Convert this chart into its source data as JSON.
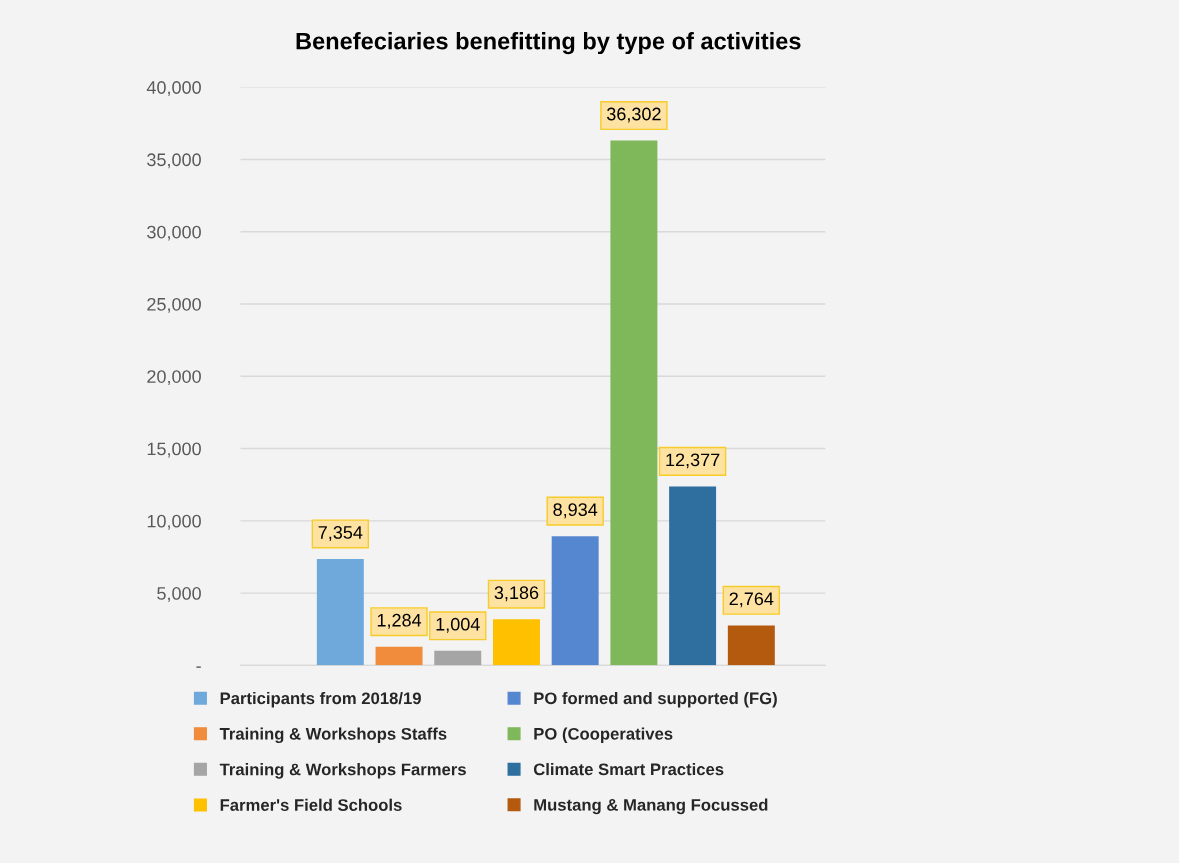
{
  "chart_data": {
    "type": "bar",
    "title": "Benefeciaries benefitting by type of activities",
    "categories": [
      null
    ],
    "series": [
      {
        "name": "Participants from 2018/19",
        "color": "#6fa9dc",
        "values": [
          7354
        ],
        "value_labels": [
          "7,354"
        ]
      },
      {
        "name": "Training & Workshops Staffs",
        "color": "#f08c3c",
        "values": [
          1284
        ],
        "value_labels": [
          "1,284"
        ]
      },
      {
        "name": "Training & Workshops Farmers",
        "color": "#a5a5a5",
        "values": [
          1004
        ],
        "value_labels": [
          "1,004"
        ]
      },
      {
        "name": "Farmer's Field Schools",
        "color": "#ffc000",
        "values": [
          3186
        ],
        "value_labels": [
          "3,186"
        ]
      },
      {
        "name": "PO formed and supported (FG)",
        "color": "#5587d0",
        "values": [
          8934
        ],
        "value_labels": [
          "8,934"
        ]
      },
      {
        "name": "PO (Cooperatives",
        "color": "#7fb85a",
        "values": [
          36302
        ],
        "value_labels": [
          "36,302"
        ]
      },
      {
        "name": "Climate Smart Practices",
        "color": "#2e6fa0",
        "values": [
          12377
        ],
        "value_labels": [
          "12,377"
        ]
      },
      {
        "name": "Mustang & Manang Focussed",
        "color": "#b35a0f",
        "values": [
          2764
        ],
        "value_labels": [
          "2,764"
        ]
      }
    ],
    "ylim": [
      0,
      40000
    ],
    "yticks": [
      {
        "value": 0,
        "label": "-"
      },
      {
        "value": 5000,
        "label": "5,000"
      },
      {
        "value": 10000,
        "label": "10,000"
      },
      {
        "value": 15000,
        "label": "15,000"
      },
      {
        "value": 20000,
        "label": "20,000"
      },
      {
        "value": 25000,
        "label": "25,000"
      },
      {
        "value": 30000,
        "label": "30,000"
      },
      {
        "value": 35000,
        "label": "35,000"
      },
      {
        "value": 40000,
        "label": "40,000"
      }
    ],
    "grid": "y",
    "legend": "bottom"
  }
}
